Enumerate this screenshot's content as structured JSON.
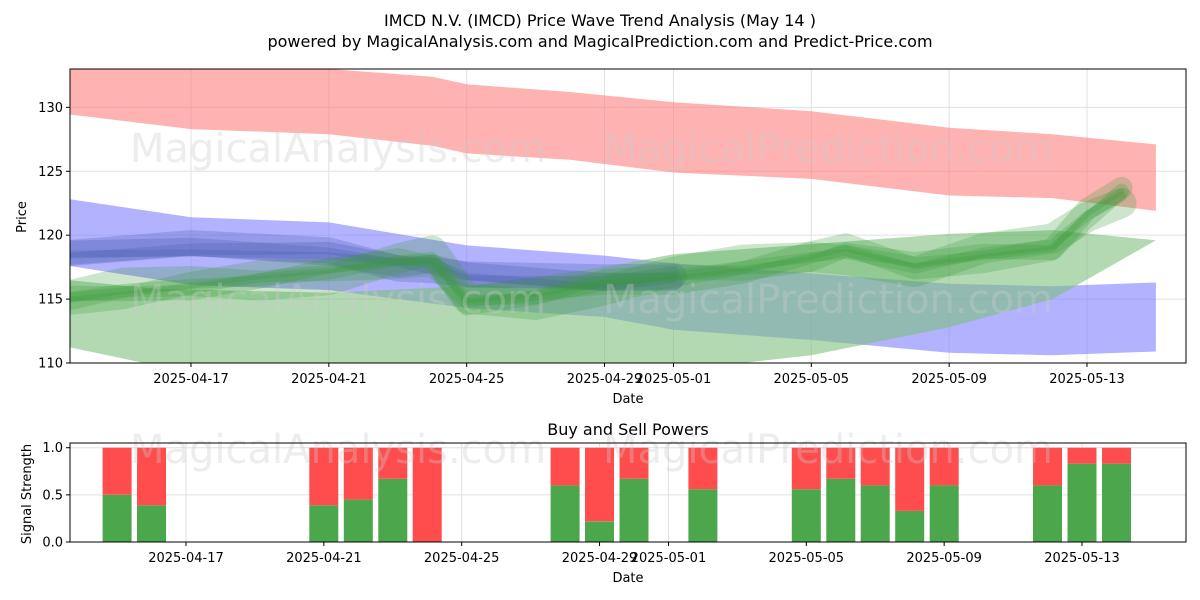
{
  "title_line1": "IMCD N.V. (IMCD) Price Wave Trend Analysis (May 14 )",
  "title_line2": "powered by MagicalAnalysis.com and MagicalPrediction.com and Predict-Price.com",
  "watermarks": [
    "MagicalAnalysis.com",
    "MagicalPrediction.com"
  ],
  "colors": {
    "red_band": "#ff7f7f",
    "blue_band": "#7f7fff",
    "green_band": "#7fbf7f",
    "green_trace": "#3a9a3a",
    "buy": "#4ca64c",
    "sell": "#ff4c4c",
    "grid": "#e0e0e0"
  },
  "chart_data": [
    {
      "type": "area",
      "title": "",
      "xlabel": "Date",
      "ylabel": "Price",
      "ylim": [
        110,
        133
      ],
      "xlim": [
        "2025-04-12",
        "2025-05-16"
      ],
      "x_ticks": [
        "2025-04-17",
        "2025-04-21",
        "2025-04-25",
        "2025-04-29",
        "2025-05-01",
        "2025-05-05",
        "2025-05-09",
        "2025-05-13"
      ],
      "y_ticks": [
        110,
        115,
        120,
        125,
        130
      ],
      "grid": true,
      "bands": [
        {
          "color": "red",
          "x": [
            "2025-04-13",
            "2025-04-17",
            "2025-04-21",
            "2025-04-24",
            "2025-04-25",
            "2025-04-28",
            "2025-05-01",
            "2025-05-05",
            "2025-05-09",
            "2025-05-12",
            "2025-05-15"
          ],
          "upper": [
            133.5,
            133.2,
            133,
            132.4,
            131.8,
            131.2,
            130.4,
            129.7,
            128.4,
            127.9,
            127.1
          ],
          "lower": [
            129.6,
            128.3,
            127.9,
            127,
            126.4,
            125.9,
            124.9,
            124.4,
            123.1,
            122.9,
            121.9
          ]
        },
        {
          "color": "blue",
          "x": [
            "2025-04-13",
            "2025-04-17",
            "2025-04-21",
            "2025-04-25",
            "2025-04-29",
            "2025-05-01",
            "2025-05-05",
            "2025-05-09",
            "2025-05-12",
            "2025-05-15"
          ],
          "upper": [
            123,
            121.4,
            121,
            119.2,
            118.4,
            117.8,
            117,
            116.2,
            116,
            116.3
          ],
          "lower": [
            117.8,
            116.1,
            115.7,
            114.3,
            113.6,
            112.6,
            111.8,
            110.8,
            110.6,
            110.9
          ]
        },
        {
          "color": "green",
          "x": [
            "2025-04-13",
            "2025-04-16",
            "2025-04-21",
            "2025-04-25",
            "2025-04-29",
            "2025-05-01",
            "2025-05-05",
            "2025-05-09",
            "2025-05-12",
            "2025-05-15"
          ],
          "upper": [
            116.6,
            115.8,
            115.5,
            116,
            117.5,
            118.5,
            119.3,
            120.1,
            120.4,
            119.6
          ],
          "lower": [
            111.5,
            109.8,
            109.4,
            108.6,
            109,
            109.4,
            110.6,
            112.8,
            115,
            119.6
          ]
        }
      ],
      "green_trace": {
        "x": [
          "2025-04-13",
          "2025-04-15",
          "2025-04-17",
          "2025-04-19",
          "2025-04-21",
          "2025-04-23",
          "2025-04-24",
          "2025-04-25",
          "2025-04-27",
          "2025-04-29",
          "2025-05-01",
          "2025-05-03",
          "2025-05-05",
          "2025-05-06",
          "2025-05-08",
          "2025-05-10",
          "2025-05-12",
          "2025-05-13",
          "2025-05-14"
        ],
        "y": [
          115,
          115.5,
          116,
          116.6,
          117.2,
          118,
          118,
          114.8,
          115.2,
          116.3,
          116.8,
          117.3,
          118.2,
          118.8,
          117.6,
          118.5,
          119,
          121.5,
          123.3
        ]
      },
      "blue_trace": {
        "x": [
          "2025-04-13",
          "2025-04-17",
          "2025-04-21",
          "2025-04-23",
          "2025-04-24",
          "2025-04-25",
          "2025-04-29",
          "2025-05-01"
        ],
        "y": [
          118.5,
          118.8,
          118.5,
          117.8,
          117.8,
          116.8,
          116.1,
          116.6
        ]
      }
    },
    {
      "type": "bar",
      "title": "Buy and Sell Powers",
      "xlabel": "Date",
      "ylabel": "Signal Strength",
      "ylim": [
        0,
        1.05
      ],
      "y_ticks": [
        "0.0",
        "0.5",
        "1.0"
      ],
      "x_ticks": [
        "2025-04-17",
        "2025-04-21",
        "2025-04-25",
        "2025-04-29",
        "2025-05-01",
        "2025-05-05",
        "2025-05-09",
        "2025-05-13"
      ],
      "grid": true,
      "dates": [
        "2025-04-15",
        "2025-04-16",
        "2025-04-21",
        "2025-04-22",
        "2025-04-23",
        "2025-04-24",
        "2025-04-28",
        "2025-04-29",
        "2025-04-30",
        "2025-05-02",
        "2025-05-05",
        "2025-05-06",
        "2025-05-07",
        "2025-05-08",
        "2025-05-09",
        "2025-05-12",
        "2025-05-13",
        "2025-05-14"
      ],
      "series": [
        {
          "name": "buy",
          "values": [
            0.5,
            0.39,
            0.39,
            0.45,
            0.67,
            0.0,
            0.6,
            0.22,
            0.67,
            0.56,
            0.56,
            0.67,
            0.6,
            0.33,
            0.6,
            0.6,
            0.83,
            0.83
          ]
        },
        {
          "name": "sell",
          "values": [
            0.5,
            0.61,
            0.61,
            0.55,
            0.33,
            1.0,
            0.4,
            0.78,
            0.33,
            0.44,
            0.44,
            0.33,
            0.4,
            0.67,
            0.4,
            0.4,
            0.17,
            0.17
          ]
        }
      ]
    }
  ]
}
